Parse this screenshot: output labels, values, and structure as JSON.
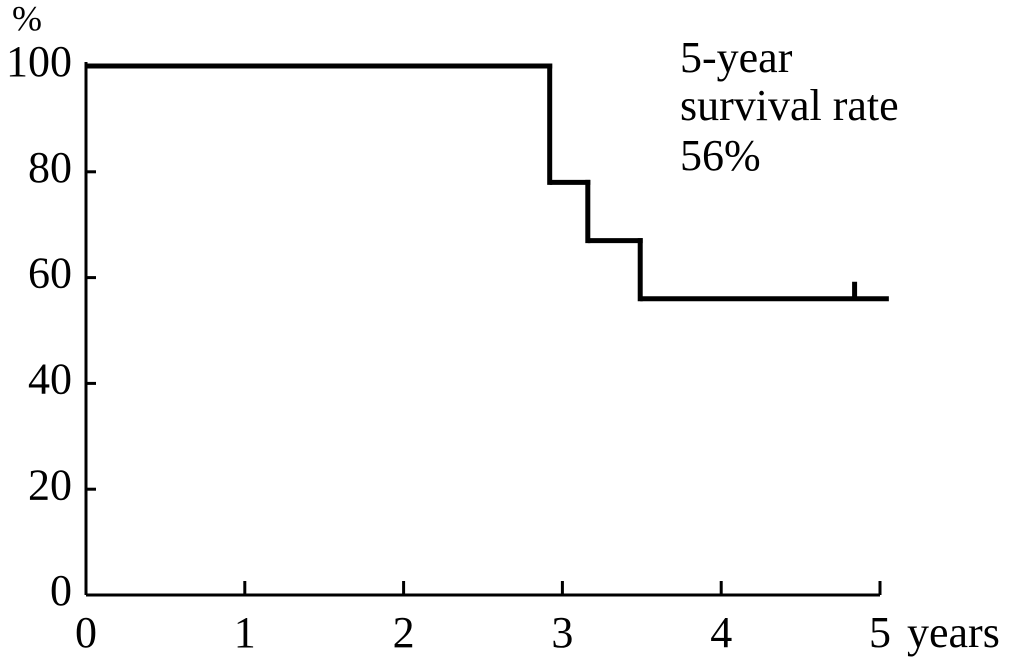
{
  "chart_data": {
    "type": "step",
    "x_label": "years",
    "y_label": "%",
    "annotation": [
      "5-year",
      "survival rate",
      "56%"
    ],
    "x": [
      0,
      2.92,
      3.16,
      3.49,
      5.04
    ],
    "values": [
      100,
      78,
      67,
      56,
      56
    ],
    "censored": {
      "x": [
        4.84
      ],
      "values": [
        56
      ]
    },
    "color": "#000000",
    "xlim": [
      0,
      5
    ],
    "ylim": [
      0,
      100
    ],
    "xticks": [
      0,
      1,
      2,
      3,
      4,
      5
    ],
    "yticks": [
      0,
      20,
      40,
      60,
      80,
      100
    ]
  }
}
